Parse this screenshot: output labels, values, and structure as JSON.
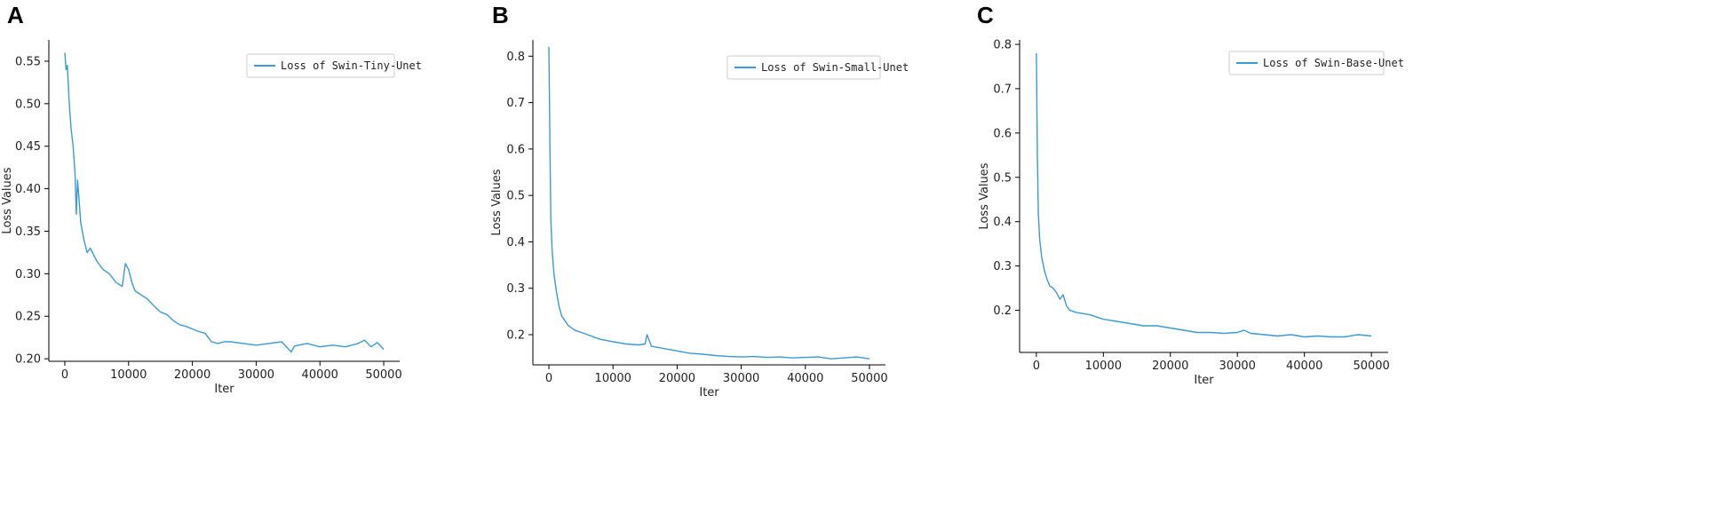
{
  "figure": {
    "background": "#ffffff",
    "line_color": "#3a9bd5"
  },
  "chart_data": [
    {
      "panel": "A",
      "type": "line",
      "xlabel": "Iter",
      "ylabel": "Loss Values",
      "xlim": [
        -2500,
        52500
      ],
      "ylim": [
        0.197,
        0.575
      ],
      "xticks": [
        0,
        10000,
        20000,
        30000,
        40000,
        50000
      ],
      "yticks": [
        0.2,
        0.25,
        0.3,
        0.35,
        0.4,
        0.45,
        0.5,
        0.55
      ],
      "ytick_decimals": 2,
      "legend": "top-right",
      "series": [
        {
          "name": "Loss of Swin-Tiny-Unet",
          "color": "#3a9bd5",
          "x": [
            0,
            200,
            400,
            700,
            1000,
            1300,
            1600,
            1800,
            2000,
            2200,
            2500,
            3000,
            3500,
            4000,
            5000,
            6000,
            7000,
            8000,
            9000,
            9500,
            10000,
            10500,
            11000,
            12000,
            13000,
            14000,
            15000,
            16000,
            17000,
            18000,
            19000,
            20000,
            21000,
            22000,
            23000,
            24000,
            25000,
            26000,
            28000,
            30000,
            32000,
            34000,
            35500,
            36000,
            38000,
            40000,
            42000,
            44000,
            46000,
            47000,
            48000,
            49000,
            50000
          ],
          "y": [
            0.56,
            0.54,
            0.545,
            0.5,
            0.47,
            0.45,
            0.42,
            0.37,
            0.41,
            0.39,
            0.36,
            0.34,
            0.325,
            0.33,
            0.315,
            0.305,
            0.3,
            0.29,
            0.285,
            0.312,
            0.305,
            0.29,
            0.28,
            0.275,
            0.27,
            0.262,
            0.255,
            0.252,
            0.245,
            0.24,
            0.238,
            0.235,
            0.232,
            0.23,
            0.22,
            0.218,
            0.22,
            0.22,
            0.218,
            0.216,
            0.218,
            0.22,
            0.208,
            0.215,
            0.218,
            0.214,
            0.216,
            0.214,
            0.218,
            0.222,
            0.214,
            0.219,
            0.211
          ]
        }
      ]
    },
    {
      "panel": "B",
      "type": "line",
      "xlabel": "Iter",
      "ylabel": "Loss Values",
      "xlim": [
        -2500,
        52500
      ],
      "ylim": [
        0.135,
        0.835
      ],
      "xticks": [
        0,
        10000,
        20000,
        30000,
        40000,
        50000
      ],
      "yticks": [
        0.2,
        0.3,
        0.4,
        0.5,
        0.6,
        0.7,
        0.8
      ],
      "ytick_decimals": 1,
      "legend": "top-right",
      "series": [
        {
          "name": "Loss of Swin-Small-Unet",
          "color": "#3a9bd5",
          "x": [
            0,
            150,
            300,
            500,
            800,
            1200,
            1600,
            2000,
            2500,
            3000,
            4000,
            5000,
            6000,
            8000,
            10000,
            12000,
            14000,
            15000,
            15300,
            16000,
            18000,
            20000,
            22000,
            24000,
            26000,
            28000,
            30000,
            32000,
            34000,
            36000,
            38000,
            40000,
            42000,
            44000,
            46000,
            48000,
            50000
          ],
          "y": [
            0.82,
            0.62,
            0.45,
            0.38,
            0.33,
            0.29,
            0.26,
            0.24,
            0.23,
            0.22,
            0.21,
            0.205,
            0.2,
            0.19,
            0.185,
            0.18,
            0.178,
            0.18,
            0.2,
            0.175,
            0.17,
            0.165,
            0.16,
            0.158,
            0.155,
            0.153,
            0.152,
            0.153,
            0.151,
            0.152,
            0.15,
            0.151,
            0.152,
            0.148,
            0.15,
            0.152,
            0.148
          ]
        }
      ]
    },
    {
      "panel": "C",
      "type": "line",
      "xlabel": "Iter",
      "ylabel": "Loss Values",
      "xlim": [
        -2500,
        52500
      ],
      "ylim": [
        0.105,
        0.81
      ],
      "xticks": [
        0,
        10000,
        20000,
        30000,
        40000,
        50000
      ],
      "yticks": [
        0.2,
        0.3,
        0.4,
        0.5,
        0.6,
        0.7,
        0.8
      ],
      "ytick_decimals": 1,
      "legend": "top-right",
      "series": [
        {
          "name": "Loss of Swin-Base-Unet",
          "color": "#3a9bd5",
          "x": [
            0,
            150,
            300,
            500,
            800,
            1200,
            1600,
            2000,
            2500,
            3000,
            3500,
            4000,
            4500,
            5000,
            6000,
            8000,
            10000,
            12000,
            14000,
            16000,
            18000,
            20000,
            22000,
            24000,
            26000,
            28000,
            30000,
            31000,
            32000,
            34000,
            36000,
            38000,
            40000,
            42000,
            44000,
            46000,
            48000,
            50000
          ],
          "y": [
            0.78,
            0.55,
            0.42,
            0.36,
            0.32,
            0.29,
            0.27,
            0.255,
            0.25,
            0.24,
            0.225,
            0.235,
            0.21,
            0.2,
            0.195,
            0.19,
            0.18,
            0.175,
            0.17,
            0.165,
            0.165,
            0.16,
            0.155,
            0.15,
            0.15,
            0.148,
            0.15,
            0.155,
            0.148,
            0.145,
            0.142,
            0.145,
            0.14,
            0.142,
            0.14,
            0.14,
            0.145,
            0.142
          ]
        }
      ]
    }
  ]
}
